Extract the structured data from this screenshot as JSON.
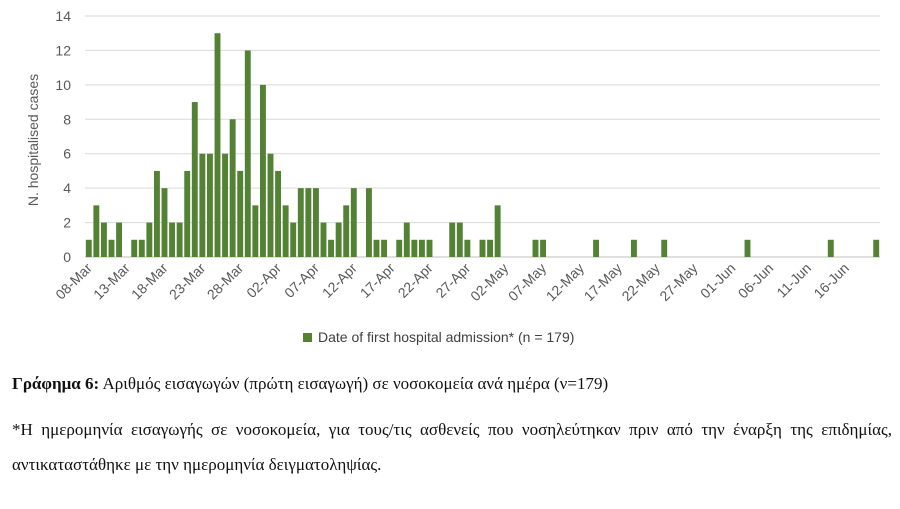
{
  "chart_data": {
    "type": "bar",
    "title": "",
    "ylabel": "N. hospitalised cases",
    "xlabel": "",
    "ylim": [
      0,
      14
    ],
    "yticks": [
      "0",
      "2",
      "4",
      "6",
      "8",
      "10",
      "12",
      "14"
    ],
    "grid": true,
    "legend_position": "bottom",
    "bar_color": "#548235",
    "start_date": "08-Mar",
    "xtick_labels": [
      "08-Mar",
      "13-Mar",
      "18-Mar",
      "23-Mar",
      "28-Mar",
      "02-Apr",
      "07-Apr",
      "12-Apr",
      "17-Apr",
      "22-Apr",
      "27-Apr",
      "02-May",
      "07-May",
      "12-May",
      "17-May",
      "22-May",
      "27-May",
      "01-Jun",
      "06-Jun",
      "11-Jun",
      "16-Jun"
    ],
    "series": [
      {
        "name": "Date of first hospital admission* (n = 179)",
        "values": [
          1,
          3,
          2,
          1,
          2,
          0,
          1,
          1,
          2,
          5,
          4,
          2,
          2,
          5,
          9,
          6,
          6,
          13,
          6,
          8,
          5,
          12,
          3,
          10,
          6,
          5,
          3,
          2,
          4,
          4,
          4,
          2,
          1,
          2,
          3,
          4,
          0,
          4,
          1,
          1,
          0,
          1,
          2,
          1,
          1,
          1,
          0,
          0,
          2,
          2,
          1,
          0,
          1,
          1,
          3,
          0,
          0,
          0,
          0,
          1,
          1,
          0,
          0,
          0,
          0,
          0,
          0,
          1,
          0,
          0,
          0,
          0,
          1,
          0,
          0,
          0,
          1,
          0,
          0,
          0,
          0,
          0,
          0,
          0,
          0,
          0,
          0,
          1,
          0,
          0,
          0,
          0,
          0,
          0,
          0,
          0,
          0,
          0,
          1,
          0,
          0,
          0,
          0,
          0,
          1
        ]
      }
    ]
  },
  "caption": {
    "title_bold": "Γράφημα 6:",
    "title_text": " Αριθμός εισαγωγών (πρώτη εισαγωγή) σε νοσοκομεία ανά ημέρα (ν=179)",
    "note": "*Η ημερομηνία εισαγωγής σε νοσοκομεία, για τους/τις ασθενείς που νοσηλεύτηκαν πριν από την έναρξη της επιδημίας, αντικαταστάθηκε με την ημερομηνία δειγματοληψίας."
  }
}
